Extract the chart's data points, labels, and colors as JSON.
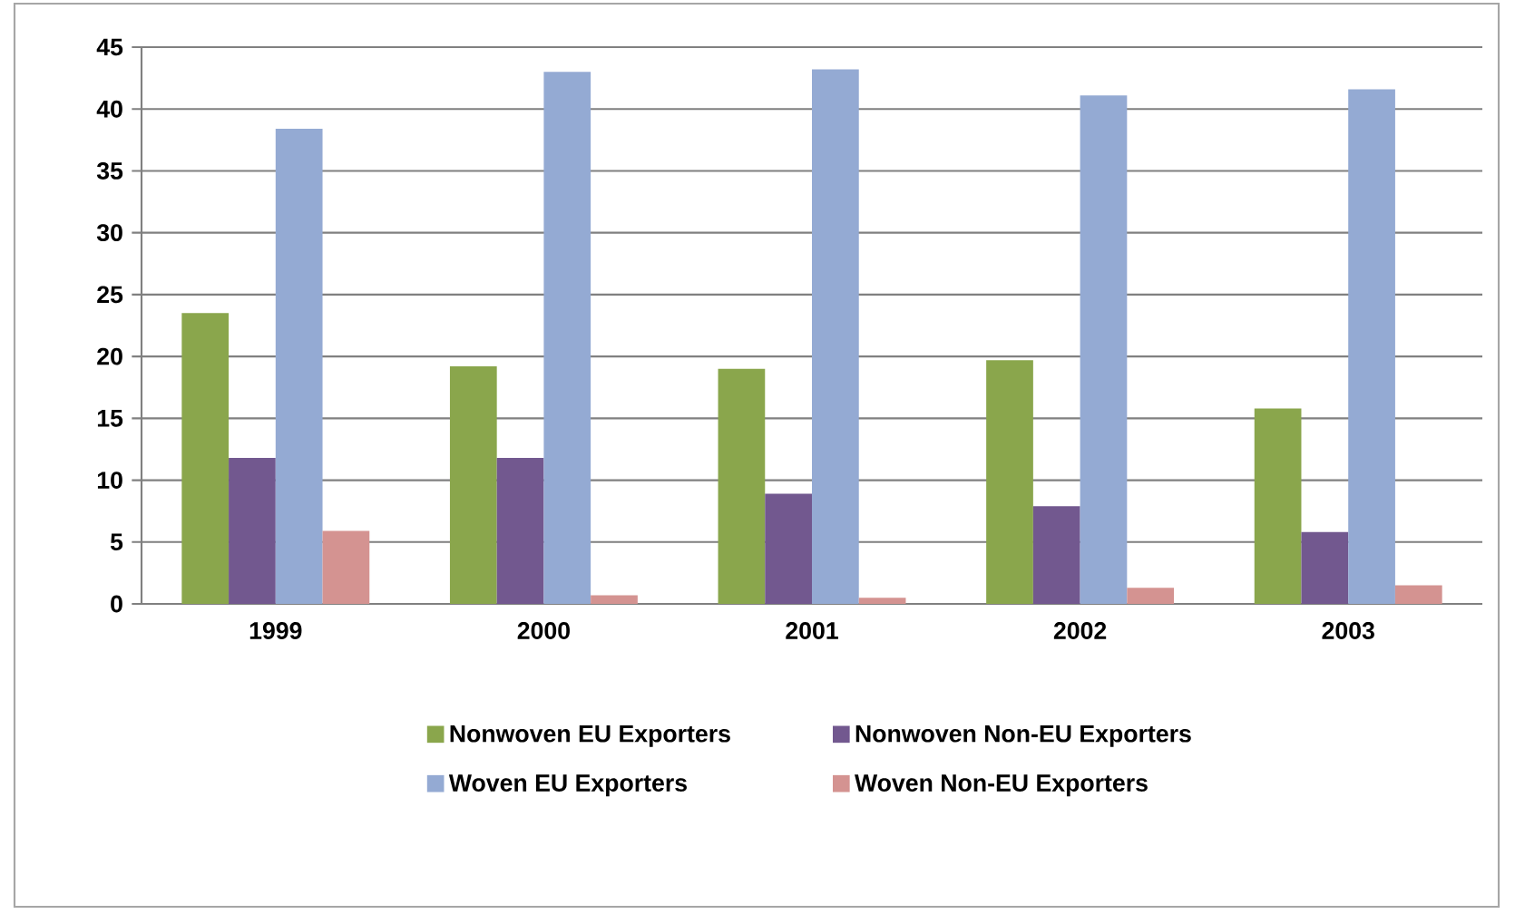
{
  "chart_data": {
    "type": "bar",
    "categories": [
      "1999",
      "2000",
      "2001",
      "2002",
      "2003"
    ],
    "series": [
      {
        "name": "Nonwoven EU Exporters",
        "color": "#8aa64c",
        "values": [
          23.5,
          19.2,
          19.0,
          19.7,
          15.8
        ]
      },
      {
        "name": "Nonwoven Non-EU Exporters",
        "color": "#72588f",
        "values": [
          11.8,
          11.8,
          8.9,
          7.9,
          5.8
        ]
      },
      {
        "name": "Woven EU Exporters",
        "color": "#94aad3",
        "values": [
          38.4,
          43.0,
          43.2,
          41.1,
          41.6
        ]
      },
      {
        "name": "Woven Non-EU Exporters",
        "color": "#d49391",
        "values": [
          5.9,
          0.7,
          0.5,
          1.3,
          1.5
        ]
      }
    ],
    "ylim": [
      0,
      45
    ],
    "yticks": [
      0,
      5,
      10,
      15,
      20,
      25,
      30,
      35,
      40,
      45
    ],
    "grid": "y",
    "legend": "bottom"
  }
}
